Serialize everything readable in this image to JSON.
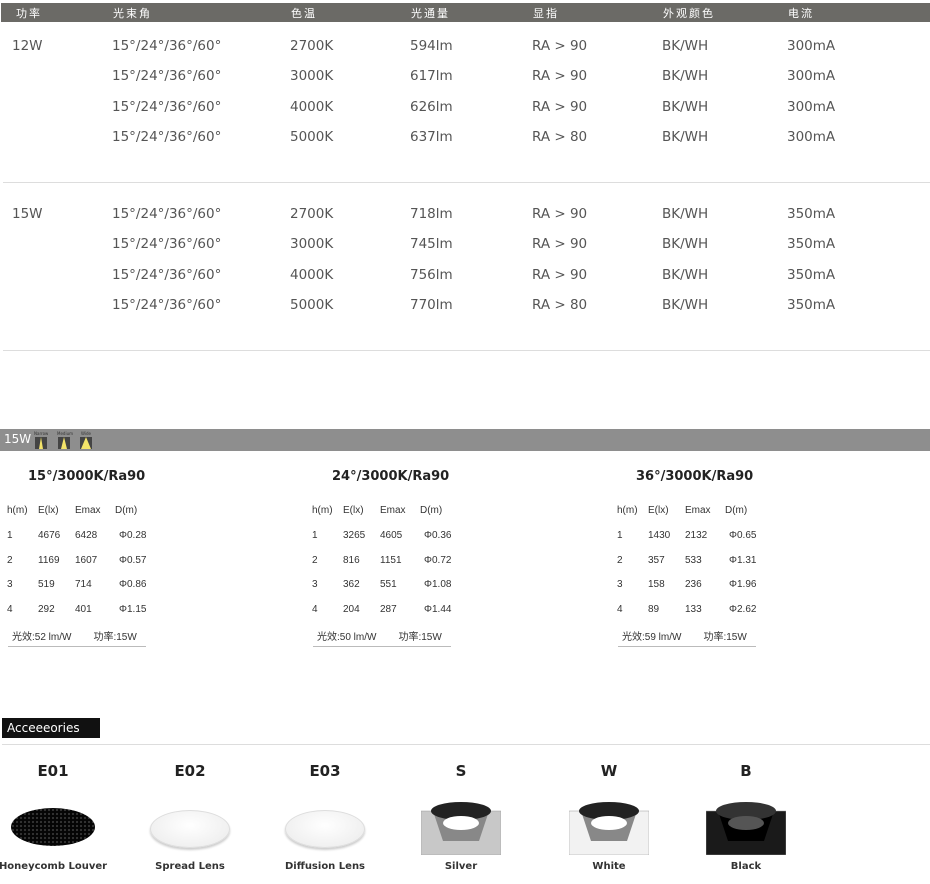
{
  "spec_table": {
    "headers": [
      "功率",
      "光束角",
      "色温",
      "光通量",
      "显指",
      "外观颜色",
      "电流"
    ],
    "groups": [
      {
        "power": "12W",
        "rows": [
          [
            "15°/24°/36°/60°",
            "2700K",
            "594lm",
            "RA > 90",
            "BK/WH",
            "300mA"
          ],
          [
            "15°/24°/36°/60°",
            "3000K",
            "617lm",
            "RA > 90",
            "BK/WH",
            "300mA"
          ],
          [
            "15°/24°/36°/60°",
            "4000K",
            "626lm",
            "RA > 90",
            "BK/WH",
            "300mA"
          ],
          [
            "15°/24°/36°/60°",
            "5000K",
            "637lm",
            "RA > 80",
            "BK/WH",
            "300mA"
          ]
        ]
      },
      {
        "power": "15W",
        "rows": [
          [
            "15°/24°/36°/60°",
            "2700K",
            "718lm",
            "RA > 90",
            "BK/WH",
            "350mA"
          ],
          [
            "15°/24°/36°/60°",
            "3000K",
            "745lm",
            "RA > 90",
            "BK/WH",
            "350mA"
          ],
          [
            "15°/24°/36°/60°",
            "4000K",
            "756lm",
            "RA > 90",
            "BK/WH",
            "350mA"
          ],
          [
            "15°/24°/36°/60°",
            "5000K",
            "770lm",
            "RA > 80",
            "BK/WH",
            "350mA"
          ]
        ]
      }
    ]
  },
  "photometric": {
    "power_label": "15W",
    "beam_icons": [
      "Narrow",
      "Medium",
      "Wide"
    ],
    "columns": [
      "h(m)",
      "E(lx)",
      "Emax",
      "D(m)"
    ],
    "tables": [
      {
        "title": "15°/3000K/Ra90",
        "rows": [
          [
            "1",
            "4676",
            "6428",
            "Φ0.28"
          ],
          [
            "2",
            "1169",
            "1607",
            "Φ0.57"
          ],
          [
            "3",
            "519",
            "714",
            "Φ0.86"
          ],
          [
            "4",
            "292",
            "401",
            "Φ1.15"
          ]
        ],
        "efficacy": "光效:52 lm/W",
        "power": "功率:15W"
      },
      {
        "title": "24°/3000K/Ra90",
        "rows": [
          [
            "1",
            "3265",
            "4605",
            "Φ0.36"
          ],
          [
            "2",
            "816",
            "1151",
            "Φ0.72"
          ],
          [
            "3",
            "362",
            "551",
            "Φ1.08"
          ],
          [
            "4",
            "204",
            "287",
            "Φ1.44"
          ]
        ],
        "efficacy": "光效:50 lm/W",
        "power": "功率:15W"
      },
      {
        "title": "36°/3000K/Ra90",
        "rows": [
          [
            "1",
            "1430",
            "2132",
            "Φ0.65"
          ],
          [
            "2",
            "357",
            "533",
            "Φ1.31"
          ],
          [
            "3",
            "158",
            "236",
            "Φ1.96"
          ],
          [
            "4",
            "89",
            "133",
            "Φ2.62"
          ]
        ],
        "efficacy": "光效:59 lm/W",
        "power": "功率:15W"
      }
    ]
  },
  "accessories": {
    "title": "Acceeeories",
    "items": [
      {
        "code": "E01",
        "label": "Honeycomb Louver",
        "type": "louver"
      },
      {
        "code": "E02",
        "label": "Spread Lens",
        "type": "lens"
      },
      {
        "code": "E03",
        "label": "Diffusion Lens",
        "type": "lens"
      },
      {
        "code": "S",
        "label": "Silver",
        "type": "trim",
        "color": "#c8c8c8"
      },
      {
        "code": "W",
        "label": "White",
        "type": "trim",
        "color": "#f2f2f2"
      },
      {
        "code": "B",
        "label": "Black",
        "type": "trim",
        "color": "#1a1a1a"
      }
    ]
  }
}
